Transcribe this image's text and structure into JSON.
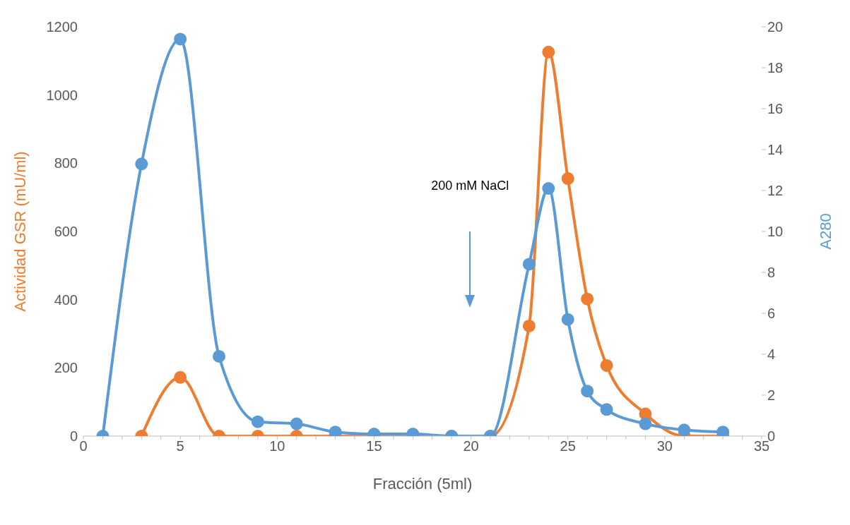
{
  "chart_data": {
    "type": "line",
    "xlabel": "Fracción (5ml)",
    "ylabel": "Actividad GSR (mU/ml)",
    "y2label": "A280",
    "xlim": [
      0,
      35
    ],
    "xticks": [
      0,
      {
        "value": 1,
        "label": null
      },
      {
        "value": 2,
        "label": null
      },
      {
        "value": 3,
        "label": null
      },
      {
        "value": 4,
        "label": null
      },
      5,
      {
        "value": 6,
        "label": null
      },
      {
        "value": 7,
        "label": null
      },
      {
        "value": 8,
        "label": null
      },
      {
        "value": 9,
        "label": null
      },
      10,
      {
        "value": 11,
        "label": null
      },
      {
        "value": 12,
        "label": null
      },
      {
        "value": 13,
        "label": null
      },
      {
        "value": 14,
        "label": null
      },
      15,
      {
        "value": 16,
        "label": null
      },
      {
        "value": 17,
        "label": null
      },
      {
        "value": 18,
        "label": null
      },
      {
        "value": 19,
        "label": null
      },
      20,
      {
        "value": 21,
        "label": null
      },
      {
        "value": 22,
        "label": null
      },
      {
        "value": 23,
        "label": null
      },
      {
        "value": 24,
        "label": null
      },
      25,
      {
        "value": 26,
        "label": null
      },
      {
        "value": 27,
        "label": null
      },
      {
        "value": 28,
        "label": null
      },
      {
        "value": 29,
        "label": null
      },
      30,
      {
        "value": 31,
        "label": null
      },
      {
        "value": 32,
        "label": null
      },
      {
        "value": 33,
        "label": null
      },
      {
        "value": 34,
        "label": null
      },
      35
    ],
    "ylim": [
      0,
      1200
    ],
    "yticks": [
      0,
      200,
      400,
      600,
      800,
      1000,
      1200
    ],
    "y2lim": [
      0,
      20
    ],
    "y2ticks": [
      0,
      2,
      4,
      6,
      8,
      10,
      12,
      14,
      16,
      18,
      20
    ],
    "marker": "circle",
    "line_style": "solid",
    "annotations": [
      "200 mM NaCl"
    ],
    "series": [
      {
        "color": "#ed7d31",
        "x": [
          3,
          5,
          7,
          9,
          11,
          13,
          15,
          17,
          19,
          21,
          23,
          24,
          25,
          26,
          27,
          29,
          31,
          33
        ],
        "values": [
          0,
          172,
          0,
          0,
          0,
          0,
          0,
          0,
          0,
          0,
          323,
          1126,
          755,
          402,
          207,
          65,
          0,
          0
        ]
      },
      {
        "color": "#5b9bd5",
        "axis": "y2",
        "x": [
          1,
          3,
          5,
          7,
          9,
          11,
          13,
          15,
          17,
          19,
          21,
          23,
          24,
          25,
          26,
          27,
          29,
          31,
          33
        ],
        "values": [
          0,
          13.3,
          19.4,
          3.9,
          0.7,
          0.6,
          0.2,
          0.1,
          0.1,
          0,
          0,
          8.4,
          12.1,
          5.7,
          2.2,
          1.3,
          0.6,
          0.3,
          0.2
        ]
      }
    ]
  }
}
